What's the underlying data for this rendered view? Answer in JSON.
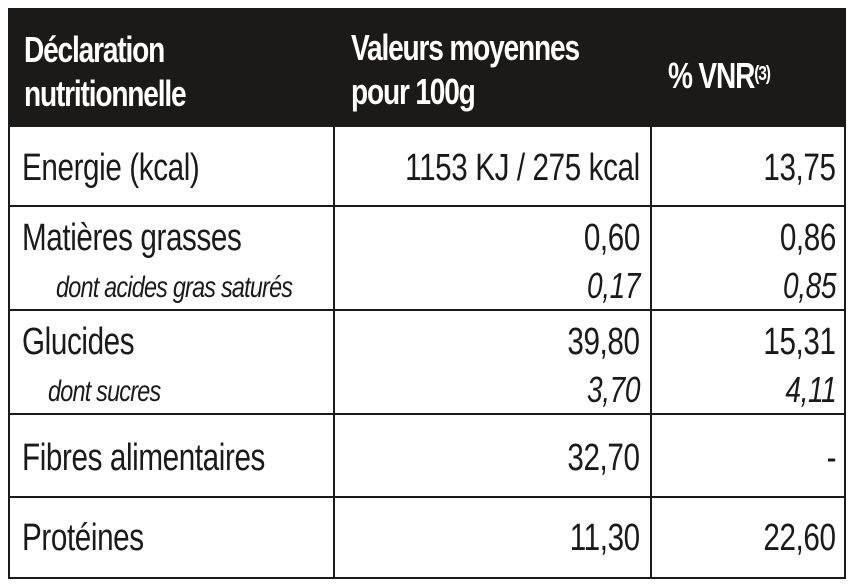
{
  "header": {
    "col1": [
      "Déclaration",
      "nutritionnelle"
    ],
    "col2": [
      "Valeurs moyennes",
      "pour 100g"
    ],
    "col3": "% VNR",
    "col3_sup": "(3)"
  },
  "rows": [
    {
      "label": "Energie (kcal)",
      "value": "1153 KJ / 275 kcal",
      "vnr": "13,75"
    },
    {
      "label": "Matières grasses",
      "value": "0,60",
      "vnr": "0,86",
      "sub_label": "dont acides gras saturés",
      "sub_value": "0,17",
      "sub_vnr": "0,85"
    },
    {
      "label": "Glucides",
      "value": "39,80",
      "vnr": "15,31",
      "sub_label": "dont sucres",
      "sub_value": "3,70",
      "sub_vnr": "4,11"
    },
    {
      "label": "Fibres alimentaires",
      "value": "32,70",
      "vnr": "-"
    },
    {
      "label": "Protéines",
      "value": "11,30",
      "vnr": "22,60"
    }
  ],
  "colors": {
    "header_bg": "#1c1a19",
    "header_text": "#ffffff",
    "text": "#1a1a1a"
  }
}
